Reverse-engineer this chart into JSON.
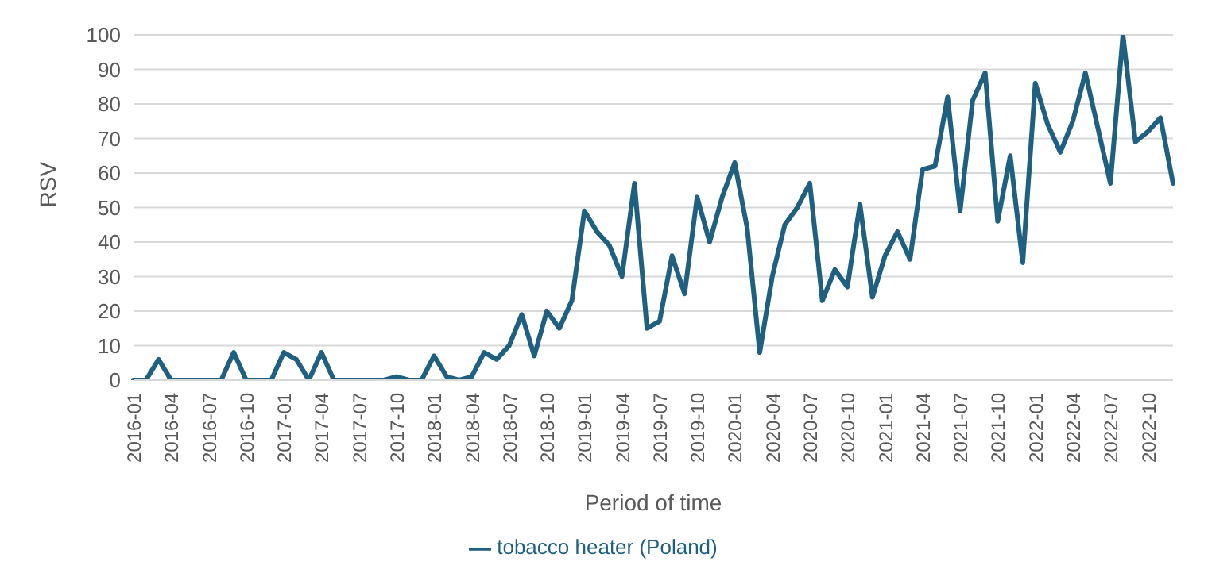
{
  "chart_data": {
    "type": "line",
    "xlabel": "Period of time",
    "ylabel": "RSV",
    "categories": [
      "2016-01",
      null,
      null,
      "2016-04",
      null,
      null,
      "2016-07",
      null,
      null,
      "2016-10",
      null,
      null,
      "2017-01",
      null,
      null,
      "2017-04",
      null,
      null,
      "2017-07",
      null,
      null,
      "2017-10",
      null,
      null,
      "2018-01",
      null,
      null,
      "2018-04",
      null,
      null,
      "2018-07",
      null,
      null,
      "2018-10",
      null,
      null,
      "2019-01",
      null,
      null,
      "2019-04",
      null,
      null,
      "2019-07",
      null,
      null,
      "2019-10",
      null,
      null,
      "2020-01",
      null,
      null,
      "2020-04",
      null,
      null,
      "2020-07",
      null,
      null,
      "2020-10",
      null,
      null,
      "2021-01",
      null,
      null,
      "2021-04",
      null,
      null,
      "2021-07",
      null,
      null,
      "2021-10",
      null,
      null,
      "2022-01",
      null,
      null,
      "2022-04",
      null,
      null,
      "2022-07",
      null,
      null,
      "2022-10",
      null,
      null
    ],
    "series": [
      {
        "name": "tobacco heater (Poland)",
        "color": "#1f5f80",
        "values": [
          0,
          0,
          6,
          0,
          0,
          0,
          0,
          0,
          8,
          0,
          0,
          0,
          8,
          6,
          0,
          8,
          0,
          0,
          0,
          0,
          0,
          1,
          0,
          0,
          7,
          1,
          0,
          1,
          8,
          6,
          10,
          19,
          7,
          20,
          15,
          23,
          49,
          43,
          39,
          30,
          57,
          15,
          17,
          36,
          25,
          53,
          40,
          53,
          63,
          44,
          8,
          30,
          45,
          50,
          57,
          23,
          32,
          27,
          51,
          24,
          36,
          43,
          35,
          61,
          62,
          82,
          49,
          81,
          89,
          46,
          65,
          34,
          86,
          74,
          66,
          75,
          89,
          73,
          57,
          100,
          69,
          72,
          76,
          57
        ]
      }
    ],
    "ylim": [
      0,
      100
    ],
    "yticks": [
      0,
      10,
      20,
      30,
      40,
      50,
      60,
      70,
      80,
      90,
      100
    ],
    "grid": "y",
    "legend": "bottom",
    "marker": "none",
    "line_style": "solid"
  }
}
